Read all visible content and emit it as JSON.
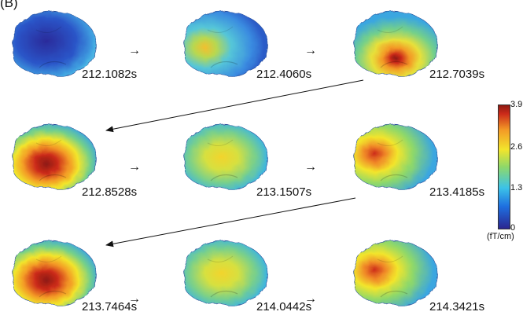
{
  "figure": {
    "panel_label": "(B)",
    "frames": [
      {
        "time": "212.1082s",
        "activation": "low"
      },
      {
        "time": "212.4060s",
        "activation": "low-mid"
      },
      {
        "time": "212.7039s",
        "activation": "focal-peak"
      },
      {
        "time": "212.8528s",
        "activation": "high"
      },
      {
        "time": "213.1507s",
        "activation": "mid"
      },
      {
        "time": "213.4185s",
        "activation": "mid-high"
      },
      {
        "time": "213.7464s",
        "activation": "high"
      },
      {
        "time": "214.0442s",
        "activation": "mid"
      },
      {
        "time": "214.3421s",
        "activation": "mid-high"
      }
    ],
    "arrow_glyph": "→"
  },
  "colorbar": {
    "ticks": [
      "3.9",
      "2.6",
      "1.3",
      "0"
    ],
    "unit": "(fT/cm)",
    "colors": [
      "#2a2690",
      "#1e6fe0",
      "#3cc3e8",
      "#8ed86a",
      "#f2e52c",
      "#f39a26",
      "#cc2b1a",
      "#8e1a12"
    ]
  }
}
